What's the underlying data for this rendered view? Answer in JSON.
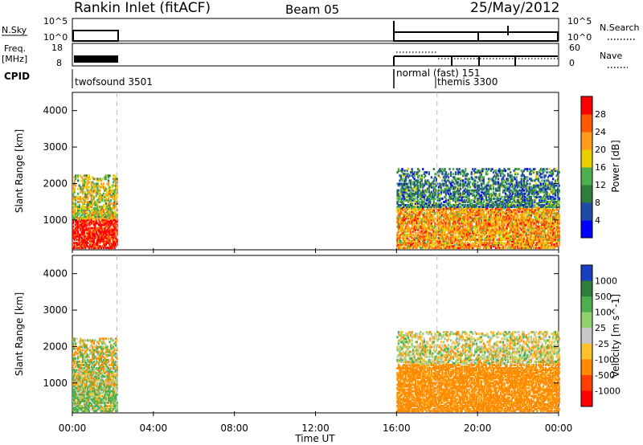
{
  "header": {
    "station": "Rankin Inlet (fitACF)",
    "beam": "Beam 05",
    "date": "25/May/2012"
  },
  "strips": {
    "nsky_label": "N.Sky",
    "nsky_ticks": [
      "10^5",
      "10^0"
    ],
    "nsearch_label": "N.Search",
    "nsearch_ticks": [
      "10^5",
      "10^0"
    ],
    "freq_label_line1": "Freq.",
    "freq_label_line2": "[MHz]",
    "freq_ticks": [
      18,
      8
    ],
    "nave_label": "Nave",
    "nave_ticks": [
      60,
      0
    ],
    "cpid_label": "CPID",
    "cpid_modes": [
      {
        "name": "twofsound 3501",
        "start_hour": 0.0,
        "end_hour": 2.2
      },
      {
        "name": "normal (fast) 151",
        "start_hour": 16.0,
        "end_hour": 24.0
      },
      {
        "name": "themis 3300",
        "start_hour": 18.0,
        "end_hour": 18.0
      }
    ]
  },
  "colorbars": {
    "power": {
      "label": "Power [dB]",
      "ticks": [
        4,
        8,
        12,
        16,
        20,
        24,
        28
      ],
      "colors": [
        "#0000ff",
        "#1f4aa8",
        "#2e7d3a",
        "#4caf50",
        "#e8d000",
        "#ff9a1a",
        "#ff5a00",
        "#ff0000"
      ]
    },
    "velocity": {
      "label": "Velocity [m s^-1]",
      "ticks": [
        "1000",
        "500",
        "100",
        "25",
        "-25",
        "-100",
        "-500",
        "-1000"
      ],
      "colors": [
        "#1a3fc0",
        "#2e7d3a",
        "#4caf50",
        "#8fd16a",
        "#c8c8c8",
        "#ffc030",
        "#ff8c00",
        "#ff4000",
        "#ff0000"
      ]
    }
  },
  "chart_data": [
    {
      "type": "heatmap",
      "panel": "power",
      "ylabel": "Slant Range [km]",
      "xlabel": "Time UT",
      "xlim": [
        0,
        24
      ],
      "ylim": [
        180,
        4500
      ],
      "yticks": [
        1000,
        2000,
        3000,
        4000
      ],
      "xticks": [
        "00:00",
        "04:00",
        "08:00",
        "12:00",
        "16:00",
        "20:00",
        "00:00"
      ],
      "regions": [
        {
          "t0": 0.0,
          "t1": 2.2,
          "r0": 200,
          "r1": 2200,
          "value_db": 24
        },
        {
          "t0": 16.0,
          "t1": 24.0,
          "r0": 200,
          "r1": 2400,
          "value_db": 14
        }
      ]
    },
    {
      "type": "heatmap",
      "panel": "velocity",
      "ylabel": "Slant Range [km]",
      "xlabel": "Time UT",
      "xlim": [
        0,
        24
      ],
      "ylim": [
        180,
        4500
      ],
      "yticks": [
        1000,
        2000,
        3000,
        4000
      ],
      "xticks": [
        "00:00",
        "04:00",
        "08:00",
        "12:00",
        "16:00",
        "20:00",
        "00:00"
      ],
      "regions": [
        {
          "t0": 0.0,
          "t1": 2.2,
          "r0": 200,
          "r1": 2200,
          "value_ms": 100
        },
        {
          "t0": 16.0,
          "t1": 24.0,
          "r0": 200,
          "r1": 2400,
          "value_ms": -100
        }
      ]
    }
  ],
  "xaxis": {
    "label": "Time UT",
    "ticks": [
      "00:00",
      "04:00",
      "08:00",
      "12:00",
      "16:00",
      "20:00",
      "00:00"
    ]
  }
}
